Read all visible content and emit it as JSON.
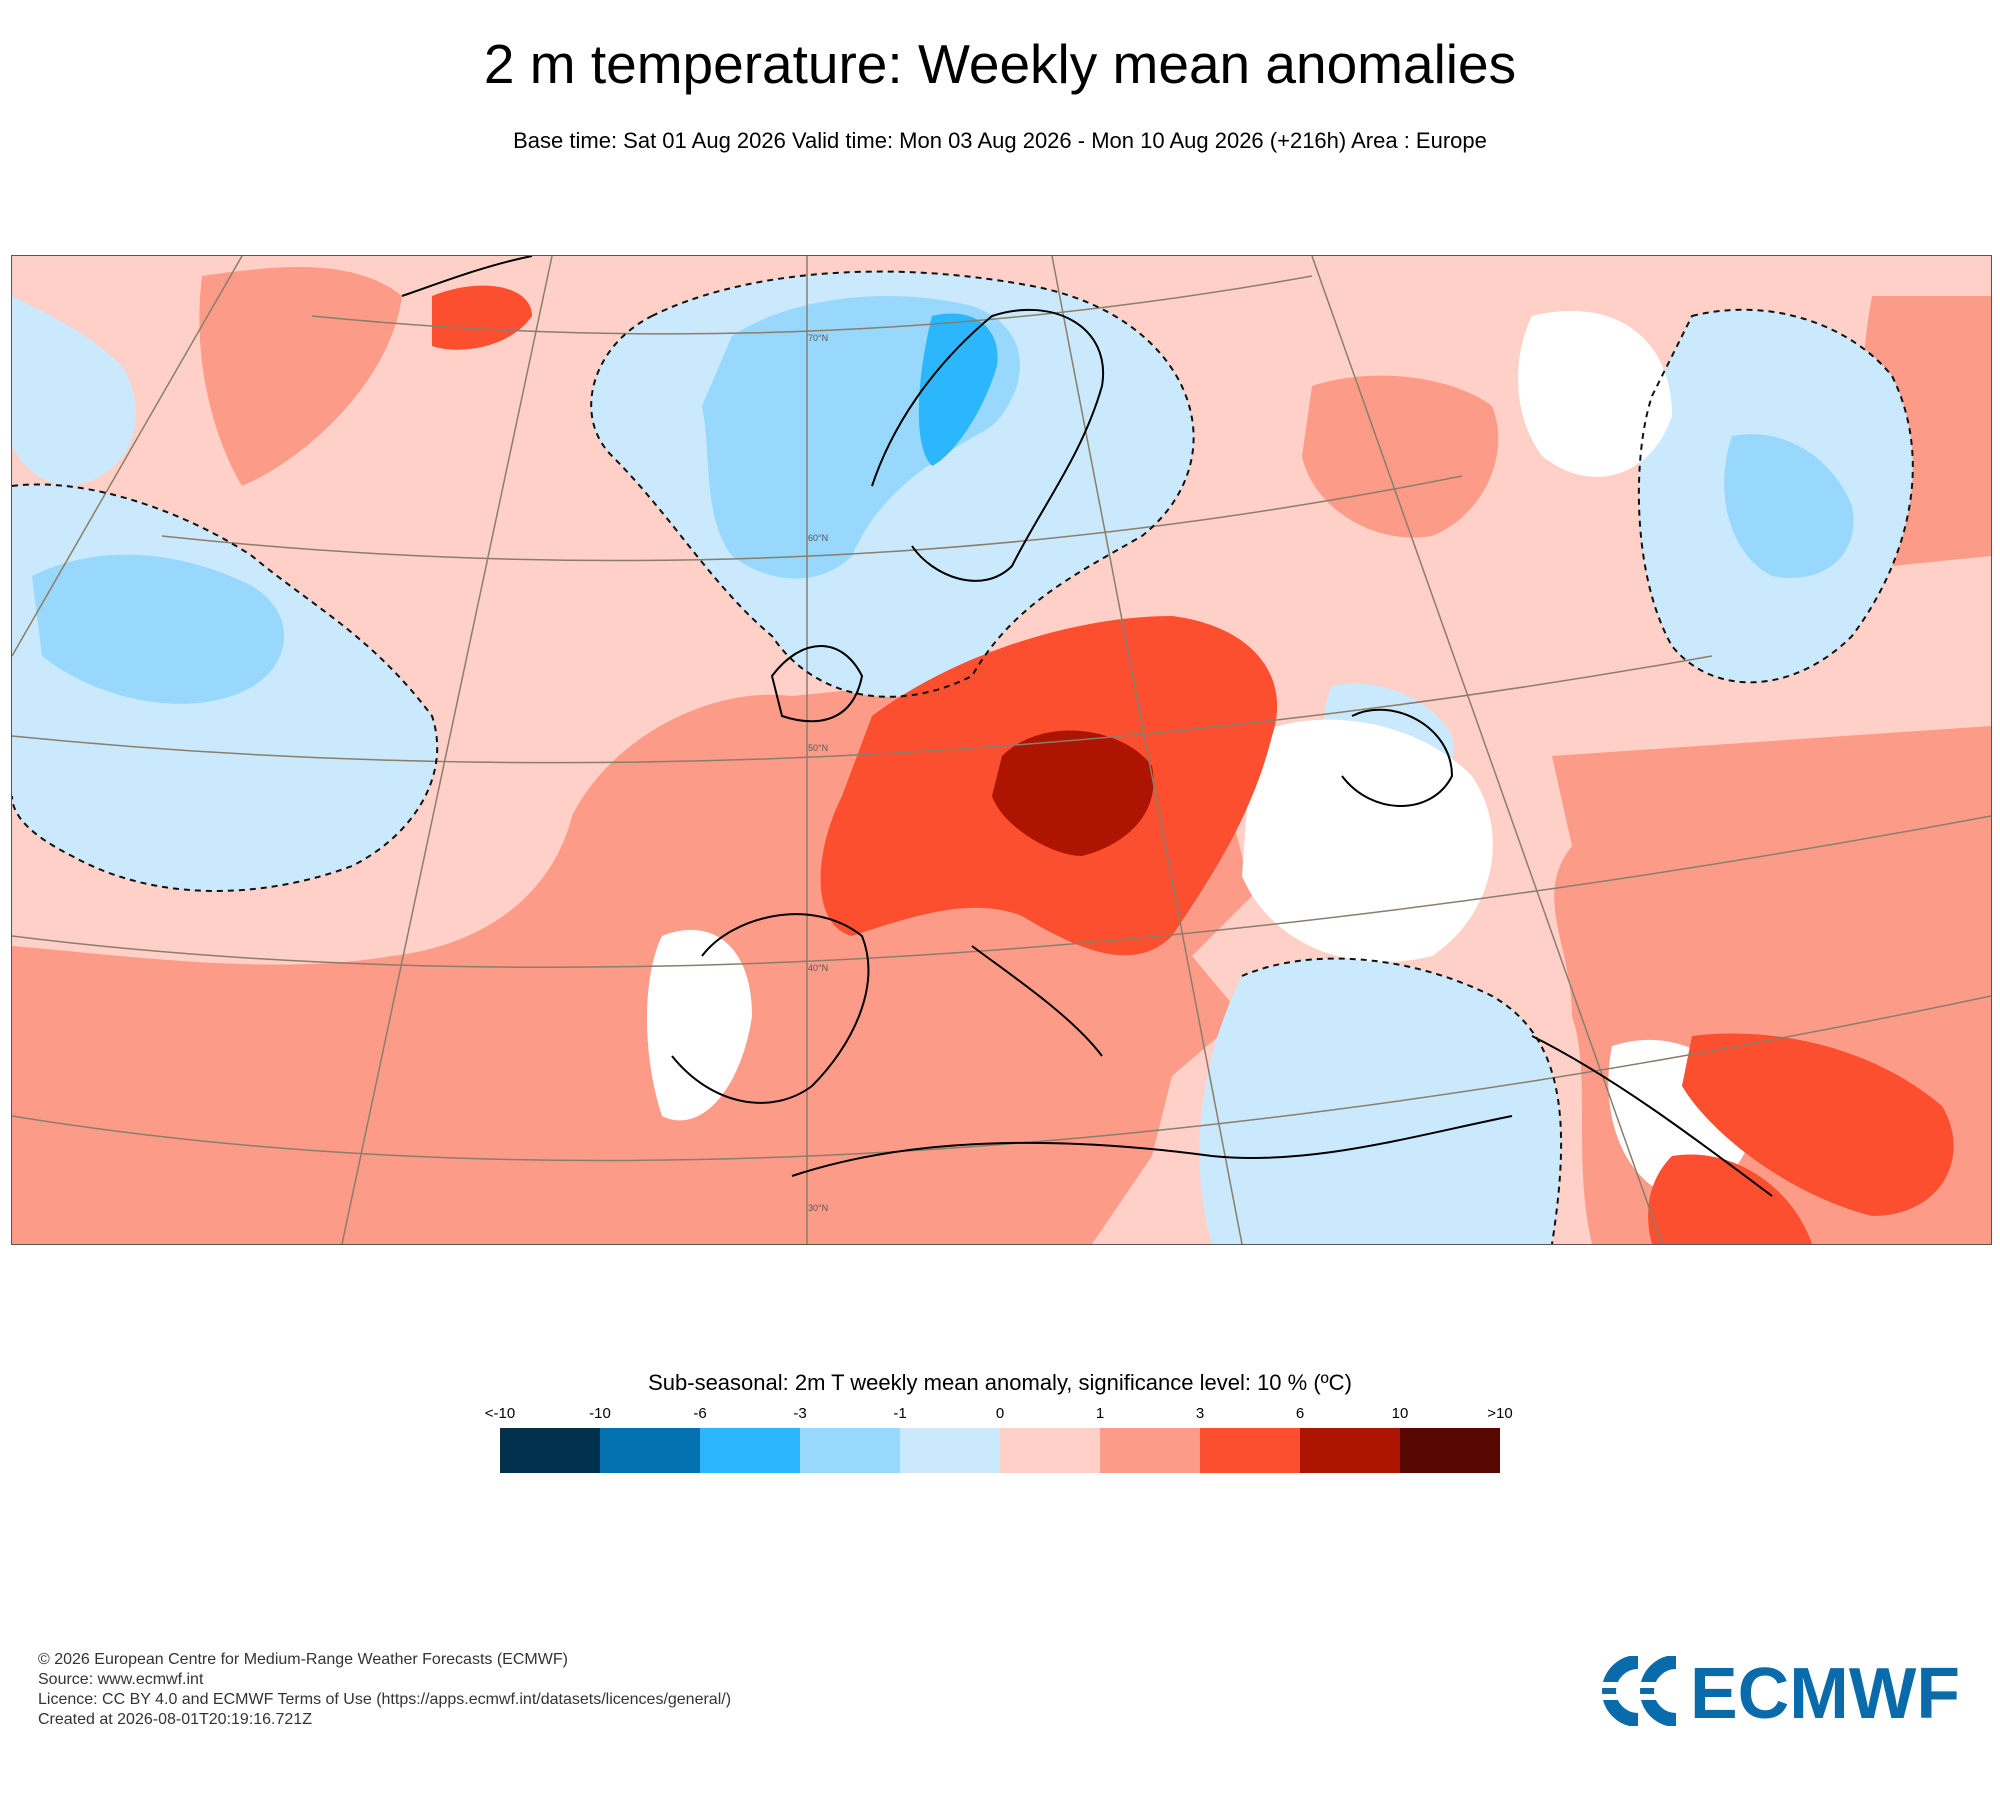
{
  "title": "2 m temperature: Weekly mean anomalies",
  "subtitle": "Base time: Sat 01 Aug 2026 Valid time: Mon 03 Aug 2026 - Mon 10 Aug 2026 (+216h) Area : Europe",
  "map": {
    "latitude_labels": [
      "70°N",
      "60°N",
      "50°N",
      "40°N",
      "30°N"
    ]
  },
  "legend": {
    "title": "Sub-seasonal: 2m T weekly mean anomaly, significance level: 10 % (ºC)",
    "tick_labels": [
      "<-10",
      "-10",
      "-6",
      "-3",
      "-1",
      "0",
      "1",
      "3",
      "6",
      "10",
      ">10"
    ],
    "colors": [
      "#02304f",
      "#0472b0",
      "#2cb6fb",
      "#98d8fd",
      "#cbe9fd",
      "#ffd0c7",
      "#fc9c88",
      "#fc4f2f",
      "#ad1402",
      "#590800"
    ]
  },
  "footer": {
    "copyright": "© 2026 European Centre for Medium-Range Weather Forecasts (ECMWF)",
    "source": "Source: www.ecmwf.int",
    "licence": "Licence: CC BY 4.0 and ECMWF Terms of Use (https://apps.ecmwf.int/datasets/licences/general/)",
    "created": "Created at 2026-08-01T20:19:16.721Z"
  },
  "logo": {
    "text": "ECMWF",
    "color": "#0a6bab"
  }
}
